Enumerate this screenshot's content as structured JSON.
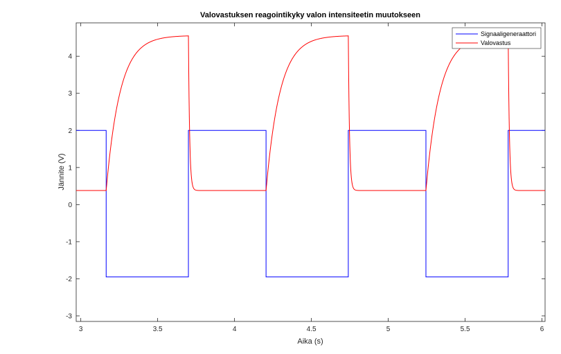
{
  "chart_data": {
    "type": "line",
    "title": "Valovastuksen reagointikyky valon intensiteetin muutokseen",
    "xlabel": "Aika (s)",
    "ylabel": "Jännite (V)",
    "xlim": [
      2.97,
      6.02
    ],
    "ylim": [
      -3.15,
      4.9
    ],
    "xticks": [
      3,
      3.5,
      4,
      4.5,
      5,
      5.5,
      6
    ],
    "xtick_labels": [
      "3",
      "3.5",
      "4",
      "4.5",
      "5",
      "5.5",
      "6"
    ],
    "yticks": [
      -3,
      -2,
      -1,
      0,
      1,
      2,
      3,
      4
    ],
    "ytick_labels": [
      "-3",
      "-2",
      "-1",
      "0",
      "1",
      "2",
      "3",
      "4"
    ],
    "grid": false,
    "legend_position": "top-right",
    "series": [
      {
        "name": "Signaaligeneraattori",
        "color": "#0000ff",
        "high": 2.0,
        "low": -1.95,
        "period": 1.04,
        "first_fall": 3.165,
        "low_duration": 0.535,
        "x": [
          2.97,
          3.165,
          3.165,
          3.7,
          3.7,
          4.205,
          4.205,
          4.74,
          4.74,
          5.245,
          5.245,
          5.78,
          5.78,
          6.02
        ],
        "y": [
          2.0,
          2.0,
          -1.95,
          -1.95,
          2.0,
          2.0,
          -1.95,
          -1.95,
          2.0,
          2.0,
          -1.95,
          -1.95,
          2.0,
          2.0
        ]
      },
      {
        "name": "Valovastus",
        "color": "#ff0000",
        "baseline": 0.38,
        "peak": 4.56,
        "rise_time_constant": 0.09,
        "fall_time_constant": 0.008,
        "rise_starts": [
          3.165,
          4.205,
          5.245
        ],
        "rise_ends": [
          3.7,
          4.74,
          5.78
        ]
      }
    ]
  }
}
